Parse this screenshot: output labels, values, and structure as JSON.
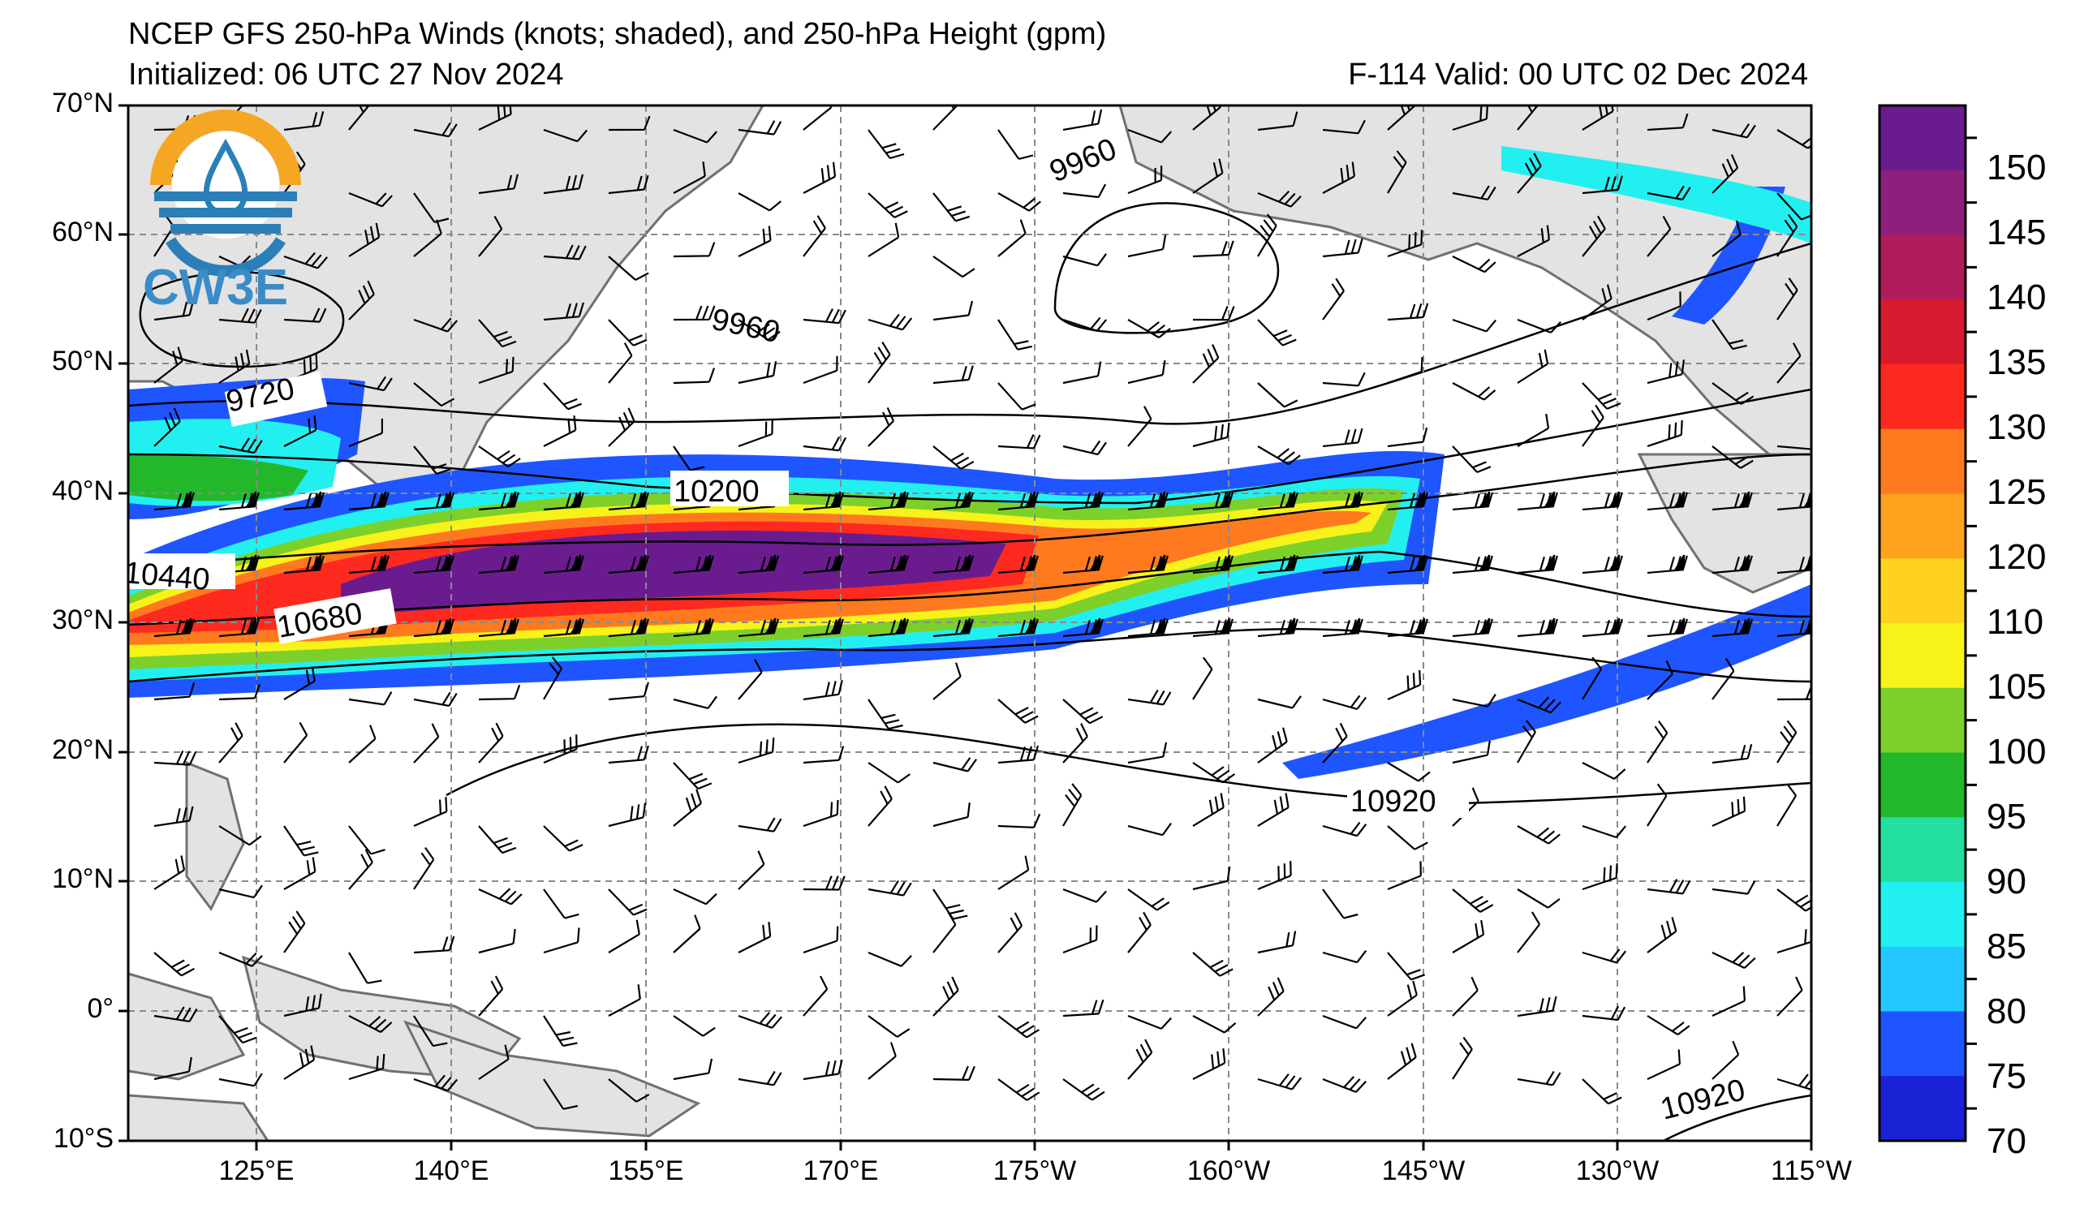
{
  "header": {
    "title": "NCEP GFS 250-hPa Winds (knots; shaded), and 250-hPa Height (gpm)",
    "initialized": "Initialized: 06 UTC 27 Nov 2024",
    "valid": "F-114  Valid: 00 UTC 02 Dec 2024"
  },
  "logo": {
    "text": "CW3E",
    "colors": {
      "ring": "#f5a623",
      "blue": "#2b7fb8"
    }
  },
  "lat_labels": [
    "70°N",
    "60°N",
    "50°N",
    "40°N",
    "30°N",
    "20°N",
    "10°N",
    "0°",
    "10°S"
  ],
  "lon_labels": [
    "125°E",
    "140°E",
    "155°E",
    "170°E",
    "175°W",
    "160°W",
    "145°W",
    "130°W",
    "115°W"
  ],
  "colorbar": {
    "ticks": [
      "150",
      "145",
      "140",
      "135",
      "130",
      "125",
      "120",
      "110",
      "105",
      "100",
      "95",
      "90",
      "85",
      "80",
      "75",
      "70"
    ],
    "colors": [
      "#6a1c8f",
      "#8e1f7d",
      "#b01c5a",
      "#d81a2e",
      "#ff2a1f",
      "#ff7a1f",
      "#ffa31f",
      "#ffd21f",
      "#f7f21a",
      "#7dd02a",
      "#22b82a",
      "#23e0a0",
      "#22f0f0",
      "#22c8ff",
      "#1f55ff",
      "#1a22d6"
    ]
  },
  "contour_labels": [
    "9960",
    "9960",
    "9720",
    "10200",
    "10440",
    "10680",
    "10920",
    "10920"
  ]
}
